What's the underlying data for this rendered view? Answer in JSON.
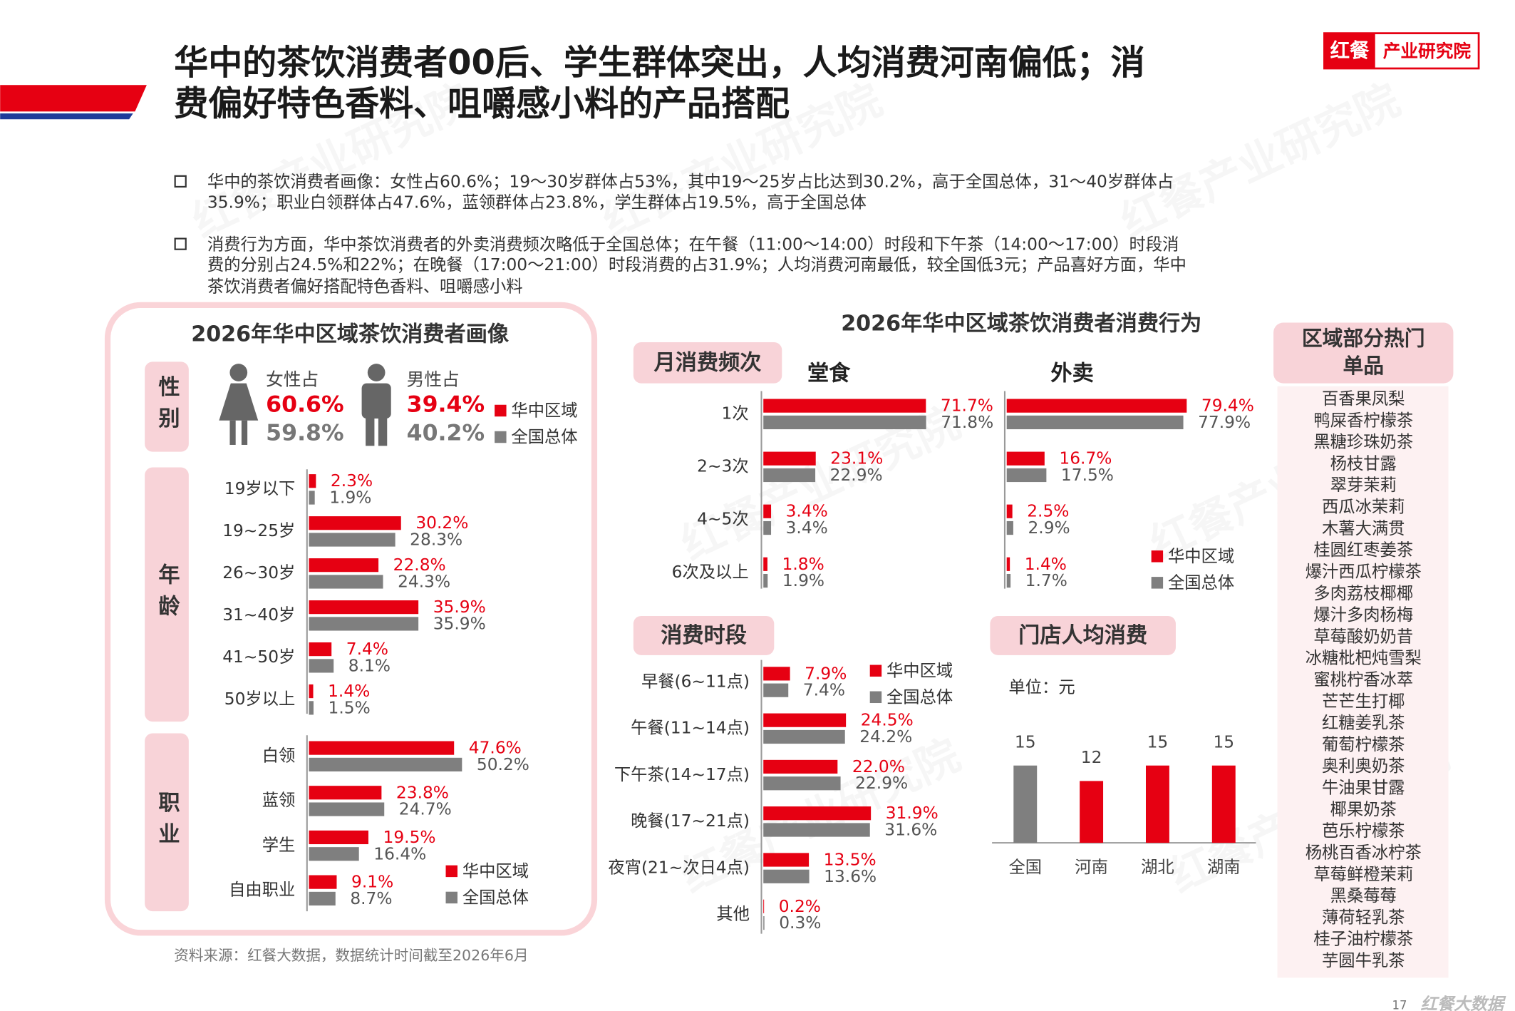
{
  "title_lines": [
    "华中的茶饮消费者00后、学生群体突出，人均消费河南偏低；消",
    "费偏好特色香料、咀嚼感小料的产品搭配"
  ],
  "logo": {
    "brand": "红餐",
    "name": "产业研究院"
  },
  "watermark": "红餐产业研究院",
  "bullets": [
    [
      "华中的茶饮消费者画像：女性占60.6%；19～30岁群体占53%，其中19～25岁占比达到30.2%，高于全国总体，31～40岁群体占",
      "35.9%；职业白领群体占47.6%，蓝领群体占23.8%，学生群体占19.5%，高于全国总体"
    ],
    [
      "消费行为方面，华中茶饮消费者的外卖消费频次略低于全国总体；在午餐（11:00～14:00）时段和下午茶（14:00～17:00）时段消",
      "费的分别占24.5%和22%；在晚餐（17:00～21:00）时段消费的占31.9%；人均消费河南最低，较全国低3元；产品喜好方面，华中",
      "茶饮消费者偏好搭配特色香料、咀嚼感小料"
    ]
  ],
  "portrait_title": "2026年华中区域茶饮消费者画像",
  "behavior_title": "2026年华中区域茶饮消费者消费行为",
  "chart_data": [
    {
      "type": "gender",
      "label": "性别",
      "categories": [
        "女性占",
        "男性占"
      ],
      "legend": true,
      "series": [
        {
          "name": "华中区域",
          "color": "#e60012",
          "values": [
            60.6,
            39.4
          ],
          "value_labels": [
            "60.6%",
            "39.4%"
          ]
        },
        {
          "name": "全国总体",
          "color": "#7f7f7f",
          "values": [
            59.8,
            40.2
          ],
          "value_labels": [
            "59.8%",
            "40.2%"
          ]
        }
      ]
    },
    {
      "type": "hbar",
      "label": "年龄",
      "categories": [
        "19岁以下",
        "19~25岁",
        "26~30岁",
        "31~40岁",
        "41~50岁",
        "50岁以上"
      ],
      "legend": false,
      "series": [
        {
          "name": "华中区域",
          "color": "#e60012",
          "values": [
            2.3,
            30.2,
            22.8,
            35.9,
            7.4,
            1.4
          ],
          "value_labels": [
            "2.3%",
            "30.2%",
            "22.8%",
            "35.9%",
            "7.4%",
            "1.4%"
          ]
        },
        {
          "name": "全国总体",
          "color": "#7f7f7f",
          "values": [
            1.9,
            28.3,
            24.3,
            35.9,
            8.1,
            1.5
          ],
          "value_labels": [
            "1.9%",
            "28.3%",
            "24.3%",
            "35.9%",
            "8.1%",
            "1.5%"
          ]
        }
      ]
    },
    {
      "type": "hbar",
      "label": "职业",
      "categories": [
        "白领",
        "蓝领",
        "学生",
        "自由职业"
      ],
      "legend": true,
      "series": [
        {
          "name": "华中区域",
          "color": "#e60012",
          "values": [
            47.6,
            23.8,
            19.5,
            9.1
          ],
          "value_labels": [
            "47.6%",
            "23.8%",
            "19.5%",
            "9.1%"
          ]
        },
        {
          "name": "全国总体",
          "color": "#7f7f7f",
          "values": [
            50.2,
            24.7,
            16.4,
            8.7
          ],
          "value_labels": [
            "50.2%",
            "24.7%",
            "16.4%",
            "8.7%"
          ]
        }
      ]
    },
    {
      "type": "hbar",
      "section": "月消费频次",
      "subtitle": "堂食",
      "categories": [
        "1次",
        "2~3次",
        "4~5次",
        "6次及以上"
      ],
      "legend": false,
      "series": [
        {
          "name": "华中区域",
          "color": "#e60012",
          "values": [
            71.7,
            23.1,
            3.4,
            1.8
          ],
          "value_labels": [
            "71.7%",
            "23.1%",
            "3.4%",
            "1.8%"
          ]
        },
        {
          "name": "全国总体",
          "color": "#7f7f7f",
          "values": [
            71.8,
            22.9,
            3.4,
            1.9
          ],
          "value_labels": [
            "71.8%",
            "22.9%",
            "3.4%",
            "1.9%"
          ]
        }
      ]
    },
    {
      "type": "hbar",
      "subtitle": "外卖",
      "legend": true,
      "series": [
        {
          "name": "华中区域",
          "color": "#e60012",
          "values": [
            79.4,
            16.7,
            2.5,
            1.4
          ],
          "value_labels": [
            "79.4%",
            "16.7%",
            "2.5%",
            "1.4%"
          ]
        },
        {
          "name": "全国总体",
          "color": "#7f7f7f",
          "values": [
            77.9,
            17.5,
            2.9,
            1.7
          ],
          "value_labels": [
            "77.9%",
            "17.5%",
            "2.9%",
            "1.7%"
          ]
        }
      ]
    },
    {
      "type": "hbar",
      "section": "消费时段",
      "categories": [
        "早餐(6~11点)",
        "午餐(11~14点)",
        "下午茶(14~17点)",
        "晚餐(17~21点)",
        "夜宵(21~次日4点)",
        "其他"
      ],
      "legend": true,
      "series": [
        {
          "name": "华中区域",
          "color": "#e60012",
          "values": [
            7.9,
            24.5,
            22.0,
            31.9,
            13.5,
            0.2
          ],
          "value_labels": [
            "7.9%",
            "24.5%",
            "22.0%",
            "31.9%",
            "13.5%",
            "0.2%"
          ]
        },
        {
          "name": "全国总体",
          "color": "#7f7f7f",
          "values": [
            7.4,
            24.2,
            22.9,
            31.6,
            13.6,
            0.3
          ],
          "value_labels": [
            "7.4%",
            "24.2%",
            "22.9%",
            "31.6%",
            "13.6%",
            "0.3%"
          ]
        }
      ]
    },
    {
      "type": "column",
      "section": "门店人均消费",
      "unit": "单位：元",
      "categories": [
        "全国",
        "河南",
        "湖北",
        "湖南"
      ],
      "values": [
        15,
        12,
        15,
        15
      ],
      "colors": [
        "#7f7f7f",
        "#e60012",
        "#e60012",
        "#e60012"
      ]
    }
  ],
  "hot_items": {
    "title_lines": [
      "区域部分热门",
      "单品"
    ],
    "items": [
      "百香果凤梨",
      "鸭屎香柠檬茶",
      "黑糖珍珠奶茶",
      "杨枝甘露",
      "翠芽茉莉",
      "西瓜冰茉莉",
      "木薯大满贯",
      "桂圆红枣姜茶",
      "爆汁西瓜柠檬茶",
      "多肉荔枝椰椰",
      "爆汁多肉杨梅",
      "草莓酸奶奶昔",
      "冰糖枇杷炖雪梨",
      "蜜桃柠香冰萃",
      "芒芒生打椰",
      "红糖姜乳茶",
      "葡萄柠檬茶",
      "奥利奥奶茶",
      "牛油果甘露",
      "椰果奶茶",
      "芭乐柠檬茶",
      "杨桃百香冰柠茶",
      "草莓鲜橙茉莉",
      "黑桑莓莓",
      "薄荷轻乳茶",
      "桂子油柠檬茶",
      "芋圆牛乳茶"
    ]
  },
  "source": "资料来源：红餐大数据，数据统计时间截至2026年6月",
  "page_number": "17",
  "footer_logo": "红餐大数据"
}
